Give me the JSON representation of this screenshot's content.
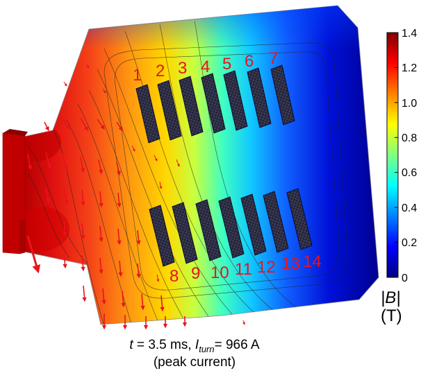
{
  "colors": {
    "colormap": [
      "#00007f",
      "#0000ff",
      "#0080ff",
      "#00ffff",
      "#80ff80",
      "#ffff00",
      "#ff8000",
      "#ff0000",
      "#7f0000"
    ],
    "coil_label": "#e8141c",
    "flux_line": "#222222",
    "field_arrow": "#e8141c"
  },
  "coil_labels": {
    "top": [
      "1",
      "2",
      "3",
      "4",
      "5",
      "6",
      "7"
    ],
    "bottom": [
      "8",
      "9",
      "10",
      "11",
      "12",
      "13",
      "14"
    ]
  },
  "colorbar": {
    "ticks": [
      "1.4",
      "1.2",
      "1.0",
      "0.8",
      "0.6",
      "0.4",
      "0.2",
      "0"
    ],
    "quantity": "|B|",
    "unit": "(T)",
    "range": [
      0,
      1.4
    ]
  },
  "caption": {
    "t_symbol": "t",
    "t_value": " = 3.5 ms, ",
    "i_symbol": "I",
    "i_subscript": "turn",
    "i_value": "= 966 A",
    "line2": "(peak current)"
  }
}
